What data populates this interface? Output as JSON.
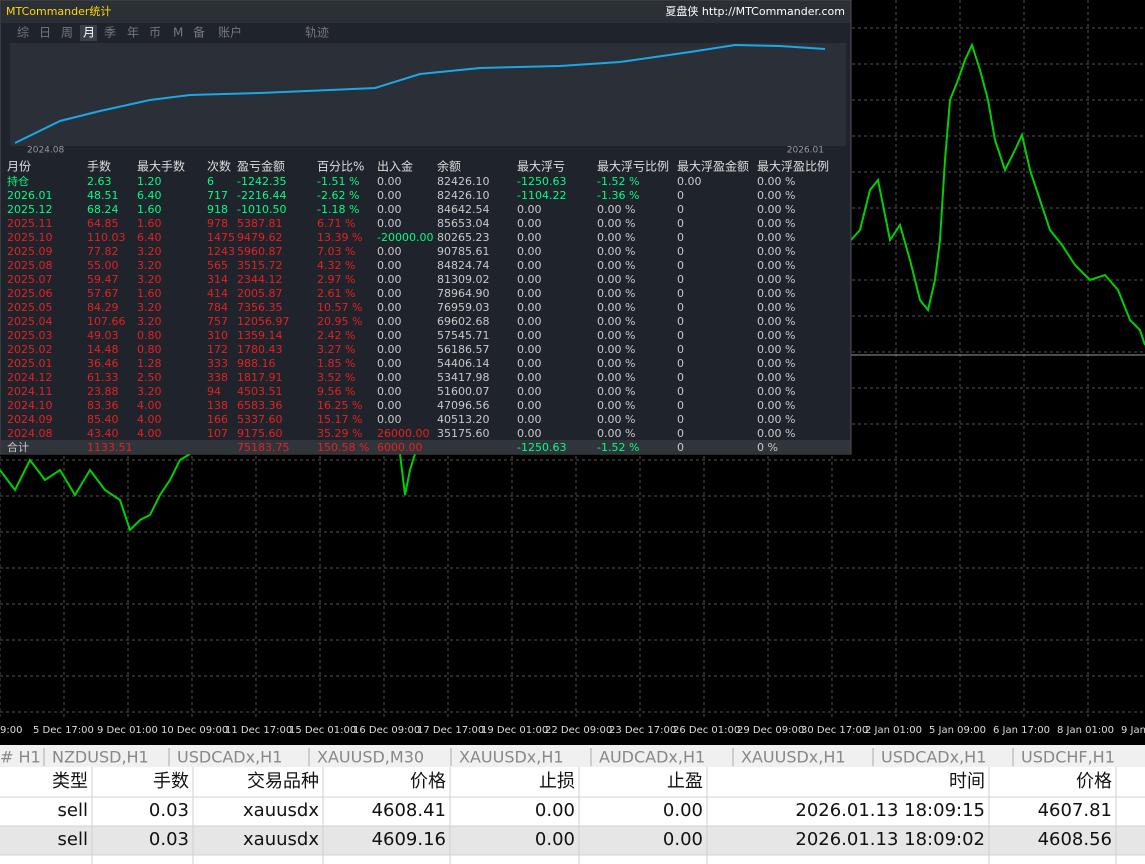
{
  "panel": {
    "title": "MTCommander统计",
    "link": "夏盘侠 http://MTCommander.com",
    "tabs": [
      "综",
      "日",
      "周",
      "月",
      "季",
      "年",
      "币",
      "M",
      "备",
      "账户",
      "轨迹"
    ],
    "active_tab": 3,
    "curve_start": "2024.08",
    "curve_end": "2026.01",
    "table": {
      "header": [
        "月份",
        "手数",
        "最大手数",
        "次数",
        "盈亏金额",
        "百分比%",
        "出入金",
        "余额",
        "最大浮亏",
        "最大浮亏比例",
        "最大浮盈金额",
        "最大浮盈比例"
      ],
      "rows": [
        {
          "color": "#00ff7f",
          "cells": [
            "持仓",
            "2.63",
            "1.20",
            "6",
            "-1242.35",
            "-1.51 %",
            "0.00",
            "82426.10",
            "-1250.63",
            "-1.52 %",
            "0.00",
            "0.00 %"
          ]
        },
        {
          "color": "#00ff7f",
          "cells": [
            "2026.01",
            "48.51",
            "6.40",
            "717",
            "-2216.44",
            "-2.62 %",
            "0.00",
            "82426.10",
            "-1104.22",
            "-1.36 %",
            "0",
            "0.00 %"
          ]
        },
        {
          "color": "#00ff7f",
          "cells": [
            "2025.12",
            "68.24",
            "1.60",
            "918",
            "-1010.50",
            "-1.18 %",
            "0.00",
            "84642.54",
            "0.00",
            "0.00 %",
            "0",
            "0.00 %"
          ]
        },
        {
          "color": "#e82020",
          "cells": [
            "2025.11",
            "64.85",
            "1.60",
            "978",
            "5387.81",
            "6.71 %",
            "0.00",
            "85653.04",
            "0.00",
            "0.00 %",
            "0",
            "0.00 %"
          ]
        },
        {
          "color": "#e82020",
          "cells": [
            "2025.10",
            "110.03",
            "6.40",
            "1475",
            "9479.62",
            "13.39 %",
            "-20000.00",
            "80265.23",
            "0.00",
            "0.00 %",
            "0",
            "0.00 %"
          ]
        },
        {
          "color": "#e82020",
          "cells": [
            "2025.09",
            "77.82",
            "3.20",
            "1243",
            "5960.87",
            "7.03 %",
            "0.00",
            "90785.61",
            "0.00",
            "0.00 %",
            "0",
            "0.00 %"
          ]
        },
        {
          "color": "#e82020",
          "cells": [
            "2025.08",
            "55.00",
            "3.20",
            "565",
            "3515.72",
            "4.32 %",
            "0.00",
            "84824.74",
            "0.00",
            "0.00 %",
            "0",
            "0.00 %"
          ]
        },
        {
          "color": "#e82020",
          "cells": [
            "2025.07",
            "59.47",
            "3.20",
            "314",
            "2344.12",
            "2.97 %",
            "0.00",
            "81309.02",
            "0.00",
            "0.00 %",
            "0",
            "0.00 %"
          ]
        },
        {
          "color": "#e82020",
          "cells": [
            "2025.06",
            "57.67",
            "1.60",
            "414",
            "2005.87",
            "2.61 %",
            "0.00",
            "78964.90",
            "0.00",
            "0.00 %",
            "0",
            "0.00 %"
          ]
        },
        {
          "color": "#e82020",
          "cells": [
            "2025.05",
            "84.29",
            "3.20",
            "784",
            "7356.35",
            "10.57 %",
            "0.00",
            "76959.03",
            "0.00",
            "0.00 %",
            "0",
            "0.00 %"
          ]
        },
        {
          "color": "#e82020",
          "cells": [
            "2025.04",
            "107.66",
            "3.20",
            "757",
            "12056.97",
            "20.95 %",
            "0.00",
            "69602.68",
            "0.00",
            "0.00 %",
            "0",
            "0.00 %"
          ]
        },
        {
          "color": "#e82020",
          "cells": [
            "2025.03",
            "49.03",
            "0.80",
            "310",
            "1359.14",
            "2.42 %",
            "0.00",
            "57545.71",
            "0.00",
            "0.00 %",
            "0",
            "0.00 %"
          ]
        },
        {
          "color": "#e82020",
          "cells": [
            "2025.02",
            "14.48",
            "0.80",
            "172",
            "1780.43",
            "3.27 %",
            "0.00",
            "56186.57",
            "0.00",
            "0.00 %",
            "0",
            "0.00 %"
          ]
        },
        {
          "color": "#e82020",
          "cells": [
            "2025.01",
            "36.46",
            "1.28",
            "333",
            "988.16",
            "1.85 %",
            "0.00",
            "54406.14",
            "0.00",
            "0.00 %",
            "0",
            "0.00 %"
          ]
        },
        {
          "color": "#e82020",
          "cells": [
            "2024.12",
            "61.33",
            "2.50",
            "338",
            "1817.91",
            "3.52 %",
            "0.00",
            "53417.98",
            "0.00",
            "0.00 %",
            "0",
            "0.00 %"
          ]
        },
        {
          "color": "#e82020",
          "cells": [
            "2024.11",
            "23.88",
            "3.20",
            "94",
            "4503.51",
            "9.56 %",
            "0.00",
            "51600.07",
            "0.00",
            "0.00 %",
            "0",
            "0.00 %"
          ]
        },
        {
          "color": "#e82020",
          "cells": [
            "2024.10",
            "83.36",
            "4.00",
            "138",
            "6583.36",
            "16.25 %",
            "0.00",
            "47096.56",
            "0.00",
            "0.00 %",
            "0",
            "0.00 %"
          ]
        },
        {
          "color": "#e82020",
          "cells": [
            "2024.09",
            "85.40",
            "4.00",
            "166",
            "5337.60",
            "15.17 %",
            "0.00",
            "40513.20",
            "0.00",
            "0.00 %",
            "0",
            "0.00 %"
          ]
        },
        {
          "color": "#e82020",
          "cells": [
            "2024.08",
            "43.40",
            "4.00",
            "107",
            "9175.60",
            "35.29 %",
            "26000.00",
            "35175.60",
            "0.00",
            "0.00 %",
            "0",
            "0.00 %"
          ]
        }
      ],
      "total": {
        "color": "#e82020",
        "cells": [
          "合计",
          "1133.51",
          null,
          null,
          "75183.75",
          "150.58 %",
          "6000.00",
          null,
          "-1250.63",
          "-1.52 %",
          "0",
          "0 %"
        ]
      }
    }
  },
  "time_axis": [
    "9:00",
    "5 Dec 17:00",
    "9 Dec 01:00",
    "10 Dec 09:00",
    "11 Dec 17:00",
    "15 Dec 01:00",
    "16 Dec 09:00",
    "17 Dec 17:00",
    "19 Dec 01:00",
    "22 Dec 09:00",
    "23 Dec 17:00",
    "26 Dec 01:00",
    "29 Dec 09:00",
    "30 Dec 17:00",
    "2 Jan 01:00",
    "5 Jan 09:00",
    "6 Jan 17:00",
    "8 Jan 01:00",
    "9 Jan"
  ],
  "chart_tabs": [
    "# H1",
    "NZDUSD,H1",
    "USDCADx,H1",
    "XAUUSD,M30",
    "XAUUSDx,H1",
    "AUDCADx,H1",
    "XAUUSDx,H1",
    "USDCADx,H1",
    "USDCHF,H1"
  ],
  "orders": {
    "header": [
      "类型",
      "手数",
      "交易品种",
      "价格",
      "止损",
      "止盈",
      "时间",
      "价格"
    ],
    "rows": [
      [
        "sell",
        "0.03",
        "xauusdx",
        "4608.41",
        "0.00",
        "0.00",
        "2026.01.13 18:09:15",
        "4607.81"
      ],
      [
        "sell",
        "0.03",
        "xauusdx",
        "4609.16",
        "0.00",
        "0.00",
        "2026.01.13 18:09:02",
        "4608.56"
      ]
    ]
  }
}
